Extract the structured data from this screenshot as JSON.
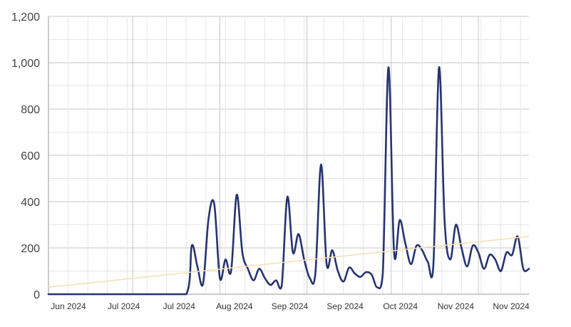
{
  "chart_data": {
    "type": "line",
    "title": "",
    "xlabel": "",
    "ylabel": "",
    "ylim": [
      0,
      1200
    ],
    "y_ticks": [
      "0",
      "200",
      "400",
      "600",
      "800",
      "1,000",
      "1,200"
    ],
    "y_tick_values": [
      0,
      200,
      400,
      600,
      800,
      1000,
      1200
    ],
    "x_tick_labels": [
      "Jun 2024",
      "Jul 2024",
      "Jul 2024",
      "Aug 2024",
      "Sep 2024",
      "Sep 2024",
      "Oct 2024",
      "Nov 2024",
      "Nov 2024"
    ],
    "xlim": [
      "2024-06-01",
      "2024-11-19"
    ],
    "grid": true,
    "legend": "none",
    "colors": {
      "series_line": "#27336e",
      "trend_line": "#f5deb3",
      "grid_minor": "#e6e6e6",
      "grid_major": "#c6c6c6",
      "axis": "#999999"
    },
    "series": [
      {
        "x": [
          "2024-06-01",
          "2024-06-10",
          "2024-06-20",
          "2024-06-30",
          "2024-07-10",
          "2024-07-20",
          "2024-07-22",
          "2024-07-24",
          "2024-07-26",
          "2024-07-28",
          "2024-07-30",
          "2024-08-01",
          "2024-08-03",
          "2024-08-05",
          "2024-08-07",
          "2024-08-09",
          "2024-08-11",
          "2024-08-13",
          "2024-08-15",
          "2024-08-17",
          "2024-08-19",
          "2024-08-21",
          "2024-08-23",
          "2024-08-25",
          "2024-08-27",
          "2024-08-29",
          "2024-08-31",
          "2024-09-02",
          "2024-09-04",
          "2024-09-06",
          "2024-09-08",
          "2024-09-10",
          "2024-09-12",
          "2024-09-14",
          "2024-09-16",
          "2024-09-18",
          "2024-09-20",
          "2024-09-22",
          "2024-09-24",
          "2024-09-26",
          "2024-09-28",
          "2024-09-30",
          "2024-10-02",
          "2024-10-04",
          "2024-10-06",
          "2024-10-08",
          "2024-10-10",
          "2024-10-12",
          "2024-10-14",
          "2024-10-16",
          "2024-10-18",
          "2024-10-20",
          "2024-10-22",
          "2024-10-24",
          "2024-10-26",
          "2024-10-28",
          "2024-10-30",
          "2024-11-01",
          "2024-11-03",
          "2024-11-05",
          "2024-11-07",
          "2024-11-09",
          "2024-11-11",
          "2024-11-13",
          "2024-11-15",
          "2024-11-17",
          "2024-11-19"
        ],
        "values": [
          0,
          0,
          0,
          0,
          0,
          0,
          210,
          120,
          45,
          330,
          390,
          70,
          150,
          100,
          430,
          180,
          110,
          60,
          110,
          70,
          40,
          60,
          35,
          420,
          180,
          260,
          150,
          70,
          90,
          560,
          130,
          190,
          100,
          55,
          115,
          90,
          75,
          95,
          85,
          30,
          90,
          980,
          180,
          320,
          220,
          130,
          210,
          190,
          140,
          130,
          980,
          310,
          150,
          300,
          200,
          120,
          210,
          180,
          110,
          170,
          150,
          100,
          180,
          170,
          250,
          110,
          110
        ]
      },
      {
        "name": "",
        "kind": "trend",
        "x": [
          "2024-06-01",
          "2024-11-19"
        ],
        "values": [
          30,
          250
        ]
      }
    ]
  }
}
